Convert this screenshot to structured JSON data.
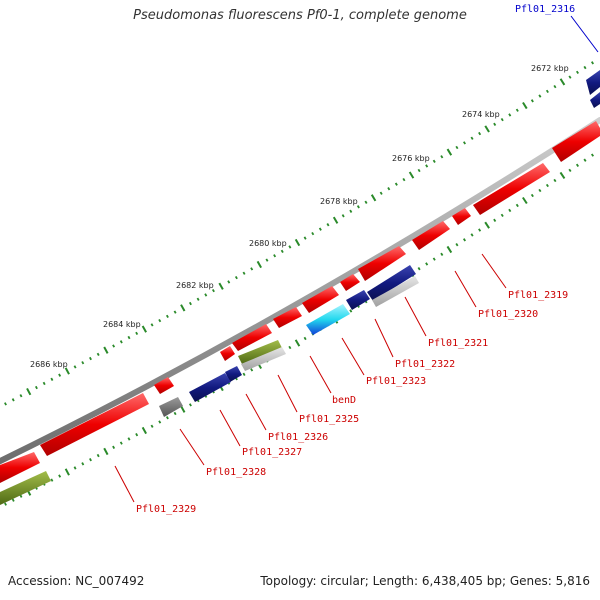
{
  "title": "Pseudomonas fluorescens Pf0-1, complete genome",
  "footer": {
    "accession": "Accession: NC_007492",
    "stats": "Topology: circular; Length: 6,438,405 bp; Genes: 5,816"
  },
  "colors": {
    "forward": "#ee0000",
    "backbone": "#8a8a8a",
    "tick": "#2a8a2a",
    "label_red": "#cc0000",
    "label_blue": "#0000cc",
    "navy": "#121a80",
    "gray": "#6e6e6e",
    "light_gray": "#bdbdbd",
    "olive": "#6f8a22",
    "cyan": "#22d8ee"
  },
  "kbp_marks": [
    "2672 kbp",
    "2674 kbp",
    "2676 kbp",
    "2678 kbp",
    "2680 kbp",
    "2682 kbp",
    "2684 kbp",
    "2686 kbp"
  ],
  "genes": [
    {
      "name": "Pfl01_2316",
      "color": "blue"
    },
    {
      "name": "Pfl01_2319",
      "color": "red"
    },
    {
      "name": "Pfl01_2320",
      "color": "red"
    },
    {
      "name": "Pfl01_2321",
      "color": "red"
    },
    {
      "name": "Pfl01_2322",
      "color": "red"
    },
    {
      "name": "Pfl01_2323",
      "color": "red"
    },
    {
      "name": "benD",
      "color": "red"
    },
    {
      "name": "Pfl01_2325",
      "color": "red"
    },
    {
      "name": "Pfl01_2326",
      "color": "red"
    },
    {
      "name": "Pfl01_2327",
      "color": "red"
    },
    {
      "name": "Pfl01_2328",
      "color": "red"
    },
    {
      "name": "Pfl01_2329",
      "color": "red"
    }
  ]
}
